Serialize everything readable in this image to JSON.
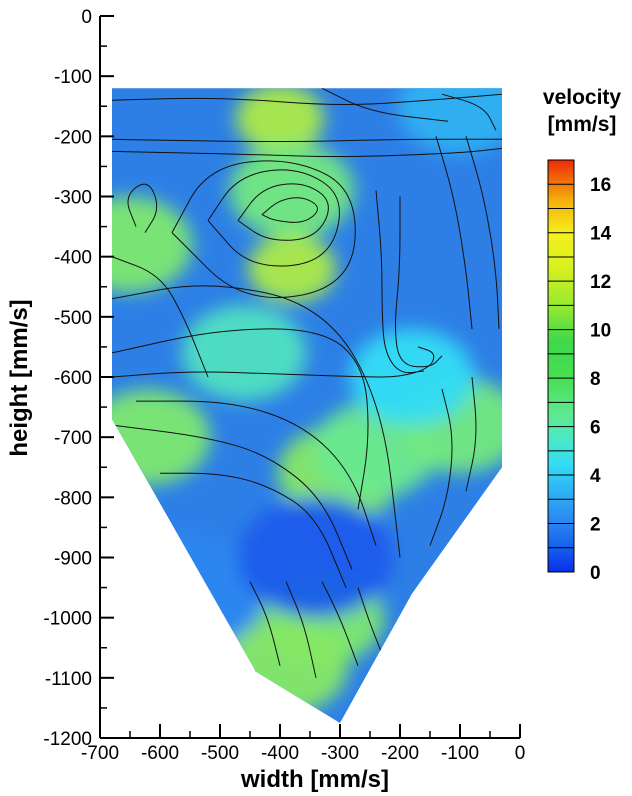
{
  "chart_data": {
    "type": "heatmap",
    "xlabel": "width [mm/s]",
    "ylabel": "height [mm/s]",
    "xlim": [
      -700,
      0
    ],
    "ylim": [
      -1200,
      0
    ],
    "xticks": [
      "-700",
      "-600",
      "-500",
      "-400",
      "-300",
      "-200",
      "-100",
      "0"
    ],
    "yticks": [
      "0",
      "-100",
      "-200",
      "-300",
      "-400",
      "-500",
      "-600",
      "-700",
      "-800",
      "-900",
      "-1000",
      "-1100",
      "-1200"
    ],
    "colorbar": {
      "title_lines": [
        "velocity",
        "[mm/s]"
      ],
      "range": [
        0,
        17
      ],
      "ticks": [
        "16",
        "14",
        "12",
        "10",
        "8",
        "6",
        "4",
        "2",
        "0"
      ]
    },
    "domain_outline": [
      [
        -680,
        -120
      ],
      [
        -30,
        -120
      ],
      [
        -30,
        -750
      ],
      [
        -180,
        -960
      ],
      [
        -300,
        -1175
      ],
      [
        -440,
        -1090
      ],
      [
        -680,
        -670
      ]
    ],
    "streamlines_present": true,
    "color_palette": {
      "background_blue": "#2d7fe6",
      "cyan": "#3fdcf0",
      "light_green": "#78e38a",
      "green": "#8ee85a",
      "yellow_green": "#c9ee32"
    },
    "velocity_regions": [
      {
        "x": -400,
        "y": -170,
        "value": 11
      },
      {
        "x": -380,
        "y": -290,
        "value": 7
      },
      {
        "x": -380,
        "y": -420,
        "value": 11
      },
      {
        "x": -650,
        "y": -380,
        "value": 8
      },
      {
        "x": -620,
        "y": -700,
        "value": 8
      },
      {
        "x": -460,
        "y": -560,
        "value": 5
      },
      {
        "x": -300,
        "y": -760,
        "value": 9
      },
      {
        "x": -240,
        "y": -720,
        "value": 6
      },
      {
        "x": -100,
        "y": -680,
        "value": 7
      },
      {
        "x": -180,
        "y": -600,
        "value": 4
      },
      {
        "x": -100,
        "y": -150,
        "value": 3
      },
      {
        "x": -330,
        "y": -1000,
        "value": 8
      },
      {
        "x": -390,
        "y": -1080,
        "value": 9
      },
      {
        "x": -560,
        "y": -960,
        "value": 2
      },
      {
        "x": -340,
        "y": -900,
        "value": 1
      }
    ]
  }
}
